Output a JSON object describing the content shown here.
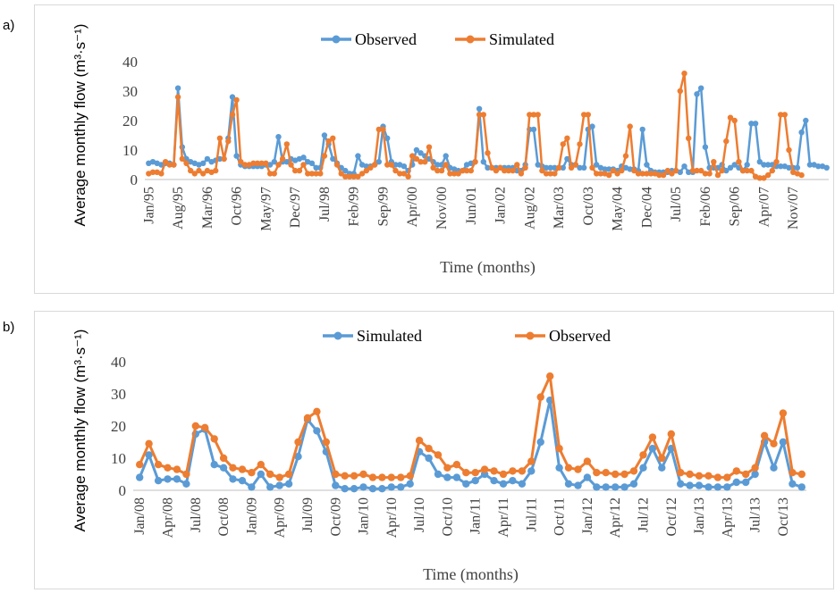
{
  "chart_data": [
    {
      "type": "line",
      "panel_label": "a)",
      "xlabel": "Time (months)",
      "ylabel": "Average monthly flow (m³·s⁻¹)",
      "ylim": [
        0,
        40
      ],
      "yticks": [
        "0",
        "10",
        "20",
        "30",
        "40"
      ],
      "legend_position": "top-center",
      "grid": false,
      "x_tick_labels": [
        "Jan/95",
        "Aug/95",
        "Mar/96",
        "Oct/96",
        "May/97",
        "Dec/97",
        "Jul/98",
        "Feb/99",
        "Sep/99",
        "Apr/00",
        "Nov/00",
        "Jun/01",
        "Jan/02",
        "Aug/02",
        "Mar/03",
        "Oct/03",
        "May/04",
        "Dec/04",
        "Jul/05",
        "Feb/06",
        "Sep/06",
        "Apr/07",
        "Nov/07"
      ],
      "x_tick_index": [
        0,
        7,
        14,
        21,
        28,
        35,
        42,
        49,
        56,
        63,
        70,
        77,
        84,
        91,
        98,
        105,
        112,
        119,
        126,
        133,
        140,
        147,
        154
      ],
      "series": [
        {
          "name": "Observed",
          "color": "#5B9BD5",
          "values": [
            5.5,
            6,
            5.5,
            5,
            5.5,
            5.5,
            5,
            31,
            11,
            7,
            6,
            5.5,
            5,
            5.5,
            7,
            6,
            6.5,
            7,
            7,
            14,
            28,
            8,
            5,
            4.5,
            4.5,
            4.5,
            4.5,
            4.5,
            5,
            5,
            6,
            14.5,
            6,
            6,
            7,
            6.5,
            7,
            7.5,
            6,
            5.5,
            4,
            4,
            15,
            12,
            7,
            5.5,
            4,
            3,
            2,
            2,
            8,
            5,
            4.5,
            4.5,
            5,
            6,
            18,
            14,
            6,
            5,
            5,
            4.5,
            3,
            5,
            10,
            9,
            8,
            7,
            6,
            5,
            5,
            8,
            4,
            3.5,
            3,
            3,
            5,
            5.5,
            6,
            24,
            6,
            4,
            4,
            4,
            4,
            4,
            4,
            4,
            3,
            3,
            5,
            17,
            17,
            5,
            4.5,
            4,
            4,
            4,
            4,
            4,
            7,
            5,
            5,
            4,
            4,
            17,
            18,
            5,
            4,
            3.5,
            3.5,
            3.5,
            3,
            4.5,
            4,
            3.5,
            3.5,
            3,
            17,
            5,
            3,
            2.5,
            2.5,
            2.5,
            2.5,
            3,
            3,
            2.5,
            4.5,
            2.5,
            2.5,
            29,
            31,
            11,
            4,
            4,
            4,
            5,
            3,
            4,
            5,
            4,
            3,
            5,
            19,
            19,
            6,
            5,
            5,
            5,
            4.5,
            4.5,
            4.5,
            4,
            4,
            4,
            16,
            20,
            5,
            5,
            4.5,
            4.5,
            4
          ]
        },
        {
          "name": "Simulated",
          "color": "#ED7D31",
          "values": [
            2,
            2.5,
            2.5,
            2,
            6,
            5,
            5,
            28,
            7,
            5.5,
            3,
            2,
            3,
            2,
            3,
            2.5,
            3,
            14,
            7,
            13,
            22,
            27,
            6,
            5,
            5,
            5.5,
            5.5,
            5.5,
            5.5,
            2,
            2,
            5,
            7,
            12,
            5,
            3,
            3,
            5,
            2,
            2,
            2,
            2,
            8,
            13,
            14,
            5,
            2,
            1,
            1,
            1,
            1,
            2,
            3,
            4,
            5,
            17,
            17,
            5,
            5,
            3,
            2,
            2,
            1,
            8,
            7,
            6,
            6,
            11,
            4,
            3,
            3,
            5,
            2,
            2,
            2,
            3,
            3,
            3,
            6,
            22,
            22,
            9,
            4,
            3,
            4,
            3,
            3,
            3,
            5,
            2,
            4,
            22,
            22,
            22,
            3,
            2,
            2,
            2,
            4,
            12,
            14,
            4,
            5,
            12,
            22,
            22,
            4,
            2,
            2,
            2,
            1.5,
            3,
            2,
            3,
            8,
            18,
            3,
            2,
            2,
            2,
            2,
            2,
            1.5,
            1.5,
            3,
            2,
            3,
            30,
            36,
            14,
            3,
            3,
            3,
            2,
            2,
            6,
            1.5,
            3,
            13,
            21,
            20,
            6,
            3,
            3,
            3,
            1,
            0.5,
            0.5,
            1.5,
            3,
            6,
            22,
            22,
            10,
            2.5,
            2,
            1.5
          ]
        }
      ]
    },
    {
      "type": "line",
      "panel_label": "b)",
      "xlabel": "Time (months)",
      "ylabel": "Average monthly flow (m³·s⁻¹)",
      "ylim": [
        0,
        40
      ],
      "yticks": [
        "0",
        "10",
        "20",
        "30",
        "40"
      ],
      "legend_position": "top-center",
      "grid": false,
      "x_tick_labels": [
        "Jan/08",
        "Apr/08",
        "Jul/08",
        "Oct/08",
        "Jan/09",
        "Apr/09",
        "Jul/09",
        "Oct/09",
        "Jan/10",
        "Apr/10",
        "Jul/10",
        "Oct/10",
        "Jan/11",
        "Apr/11",
        "Jul/11",
        "Oct/11",
        "Jan/12",
        "Apr/12",
        "Jul/12",
        "Oct/12",
        "Jan/13",
        "Apr/13",
        "Jul/13",
        "Oct/13"
      ],
      "x_tick_index": [
        0,
        3,
        6,
        9,
        12,
        15,
        18,
        21,
        24,
        27,
        30,
        33,
        36,
        39,
        42,
        45,
        48,
        51,
        54,
        57,
        60,
        63,
        66,
        69
      ],
      "series": [
        {
          "name": "Simulated",
          "color": "#5B9BD5",
          "values": [
            4,
            11,
            3,
            3.5,
            3.5,
            2,
            17.5,
            19,
            8,
            7,
            3.5,
            3,
            1,
            5,
            1,
            1.5,
            2,
            10.5,
            22,
            18.5,
            12,
            1.5,
            0.5,
            0.5,
            1,
            0.5,
            0.5,
            1,
            1,
            2,
            12,
            10,
            5,
            4,
            4,
            2,
            3,
            5,
            3,
            2,
            3,
            2,
            6,
            15,
            28,
            7,
            2,
            1.5,
            4,
            1,
            1,
            1,
            1,
            2,
            7,
            13,
            7,
            13,
            2,
            1.5,
            1.5,
            1,
            1,
            1,
            2.5,
            2.5,
            5,
            15,
            7,
            15,
            2,
            1
          ]
        },
        {
          "name": "Observed",
          "color": "#ED7D31",
          "values": [
            8,
            14.5,
            8,
            7,
            6.5,
            5,
            20,
            19.5,
            16,
            10,
            7,
            6.5,
            5.5,
            8,
            5,
            4,
            5,
            15,
            22.5,
            24.5,
            15,
            5,
            4.5,
            4.5,
            5,
            4,
            4,
            4,
            4,
            4.5,
            15.5,
            13,
            11,
            7,
            8,
            5.5,
            5.5,
            6.5,
            6,
            5,
            6,
            6,
            9,
            29,
            35.5,
            13,
            7,
            6.5,
            9,
            5.5,
            5.5,
            5,
            5,
            6,
            11,
            16.5,
            10,
            17.5,
            5.5,
            5,
            4.5,
            4.5,
            4,
            4,
            6,
            5,
            7,
            17,
            14.5,
            24,
            5.5,
            5
          ]
        }
      ]
    }
  ]
}
